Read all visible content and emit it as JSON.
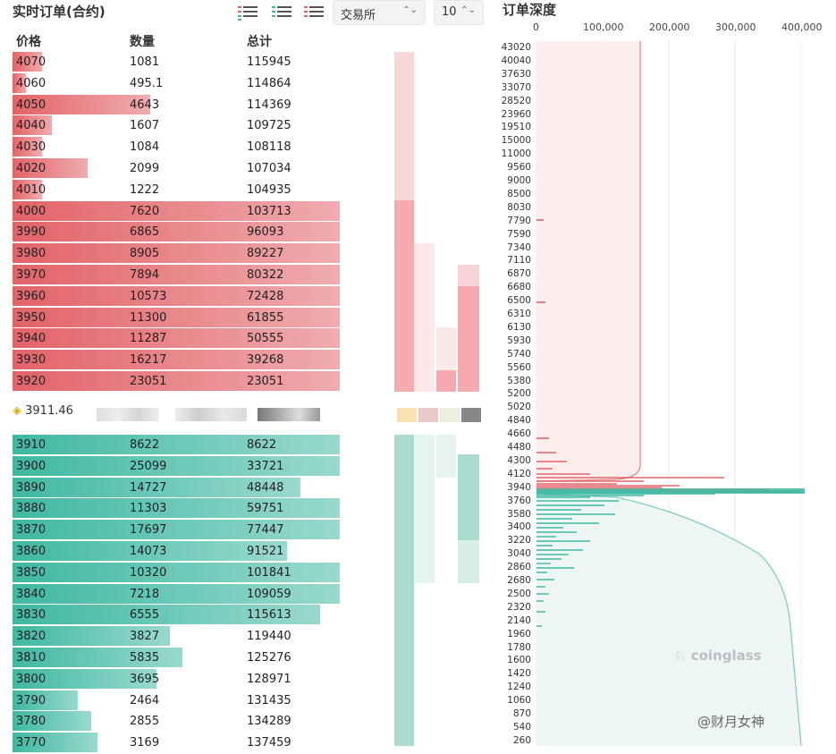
{
  "header": {
    "title": "实时订单(合约)",
    "exchange_select": "交易所",
    "depth_select": "10"
  },
  "columns": {
    "price": "价格",
    "qty": "数量",
    "total": "总计"
  },
  "colors": {
    "ask": "#e26368",
    "bid": "#3fb8a2"
  },
  "asks": [
    {
      "price": "4070",
      "qty": "1081",
      "total": "115945",
      "fill": 0.09
    },
    {
      "price": "4060",
      "qty": "495.1",
      "total": "114864",
      "fill": 0.04
    },
    {
      "price": "4050",
      "qty": "4643",
      "total": "114369",
      "fill": 0.42
    },
    {
      "price": "4040",
      "qty": "1607",
      "total": "109725",
      "fill": 0.12
    },
    {
      "price": "4030",
      "qty": "1084",
      "total": "108118",
      "fill": 0.09
    },
    {
      "price": "4020",
      "qty": "2099",
      "total": "107034",
      "fill": 0.23
    },
    {
      "price": "4010",
      "qty": "1222",
      "total": "104935",
      "fill": 0.09
    },
    {
      "price": "4000",
      "qty": "7620",
      "total": "103713",
      "fill": 1
    },
    {
      "price": "3990",
      "qty": "6865",
      "total": "96093",
      "fill": 1
    },
    {
      "price": "3980",
      "qty": "8905",
      "total": "89227",
      "fill": 1
    },
    {
      "price": "3970",
      "qty": "7894",
      "total": "80322",
      "fill": 1
    },
    {
      "price": "3960",
      "qty": "10573",
      "total": "72428",
      "fill": 1
    },
    {
      "price": "3950",
      "qty": "11300",
      "total": "61855",
      "fill": 1
    },
    {
      "price": "3940",
      "qty": "11287",
      "total": "50555",
      "fill": 1
    },
    {
      "price": "3930",
      "qty": "16217",
      "total": "39268",
      "fill": 1
    },
    {
      "price": "3920",
      "qty": "23051",
      "total": "23051",
      "fill": 1
    }
  ],
  "mid_price": "3911.46",
  "bids": [
    {
      "price": "3910",
      "qty": "8622",
      "total": "8622",
      "fill": 1
    },
    {
      "price": "3900",
      "qty": "25099",
      "total": "33721",
      "fill": 1
    },
    {
      "price": "3890",
      "qty": "14727",
      "total": "48448",
      "fill": 0.88
    },
    {
      "price": "3880",
      "qty": "11303",
      "total": "59751",
      "fill": 1
    },
    {
      "price": "3870",
      "qty": "17697",
      "total": "77447",
      "fill": 1
    },
    {
      "price": "3860",
      "qty": "14073",
      "total": "91521",
      "fill": 0.84
    },
    {
      "price": "3850",
      "qty": "10320",
      "total": "101841",
      "fill": 1
    },
    {
      "price": "3840",
      "qty": "7218",
      "total": "109059",
      "fill": 1
    },
    {
      "price": "3830",
      "qty": "6555",
      "total": "115613",
      "fill": 0.94
    },
    {
      "price": "3820",
      "qty": "3827",
      "total": "119440",
      "fill": 0.48
    },
    {
      "price": "3810",
      "qty": "5835",
      "total": "125276",
      "fill": 0.52
    },
    {
      "price": "3800",
      "qty": "3695",
      "total": "128971",
      "fill": 0.44
    },
    {
      "price": "3790",
      "qty": "2464",
      "total": "131435",
      "fill": 0.2
    },
    {
      "price": "3780",
      "qty": "2855",
      "total": "134289",
      "fill": 0.24
    },
    {
      "price": "3770",
      "qty": "3169",
      "total": "137459",
      "fill": 0.26
    }
  ],
  "depth": {
    "title": "订单深度",
    "x_ticks": [
      "0",
      "100,000",
      "200,000",
      "300,000",
      "400,000"
    ],
    "y_ticks": [
      "43020",
      "40040",
      "37630",
      "33070",
      "28520",
      "23960",
      "19510",
      "15000",
      "11000",
      "9560",
      "9000",
      "8500",
      "8030",
      "7790",
      "7590",
      "7340",
      "7110",
      "6870",
      "6680",
      "6500",
      "6310",
      "6130",
      "5930",
      "5740",
      "5560",
      "5380",
      "5200",
      "5020",
      "4840",
      "4660",
      "4480",
      "4300",
      "4120",
      "3940",
      "3760",
      "3580",
      "3400",
      "3220",
      "3040",
      "2860",
      "2680",
      "2500",
      "2320",
      "2140",
      "1960",
      "1780",
      "1600",
      "1420",
      "1240",
      "1060",
      "870",
      "540",
      "260"
    ],
    "watermark": "coinglass"
  },
  "credit": "@财月女神"
}
